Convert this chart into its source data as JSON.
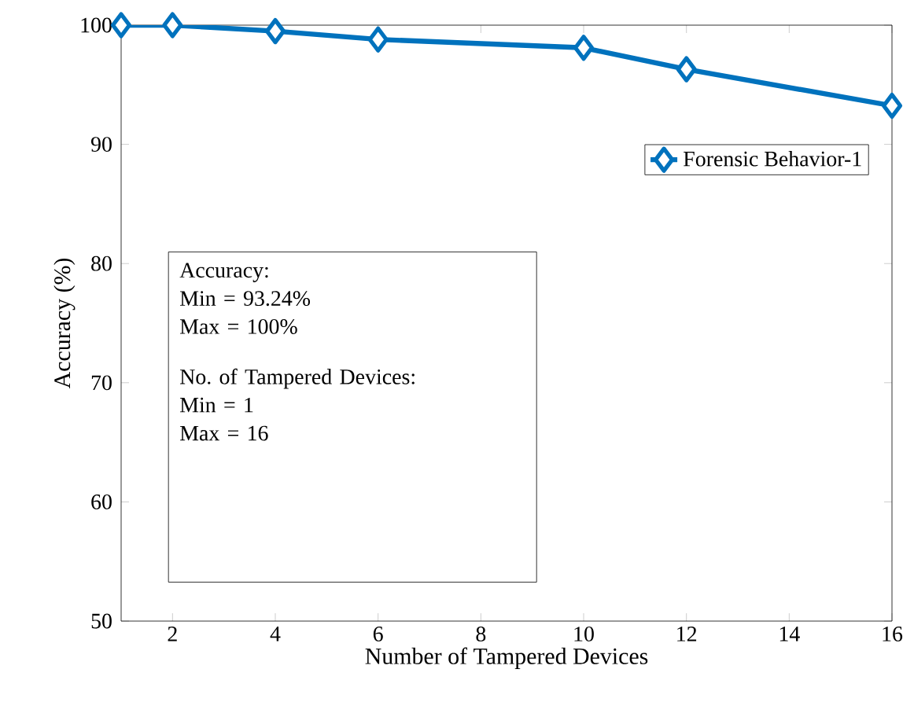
{
  "chart_data": {
    "type": "line",
    "xlabel": "Number of Tampered Devices",
    "ylabel": "Accuracy (%)",
    "x": [
      1,
      2,
      4,
      6,
      10,
      12,
      16
    ],
    "series": [
      {
        "name": "Forensic Behavior-1",
        "color": "#0072bd",
        "values": [
          100,
          100,
          99.5,
          98.8,
          98.1,
          96.3,
          93.24
        ]
      }
    ],
    "xlim": [
      1,
      16
    ],
    "xticks": [
      2,
      4,
      6,
      8,
      10,
      12,
      14,
      16
    ],
    "ylim": [
      50,
      100
    ],
    "yticks": [
      50,
      60,
      70,
      80,
      90,
      100
    ],
    "marker": "diamond",
    "line_style": "solid",
    "legend": "top right",
    "grid": false,
    "annotations": [
      "Accuracy:",
      "Min = 93.24%",
      "Max = 100%",
      "No. of Tampered Devices:",
      "Min = 1",
      "Max = 16"
    ]
  }
}
